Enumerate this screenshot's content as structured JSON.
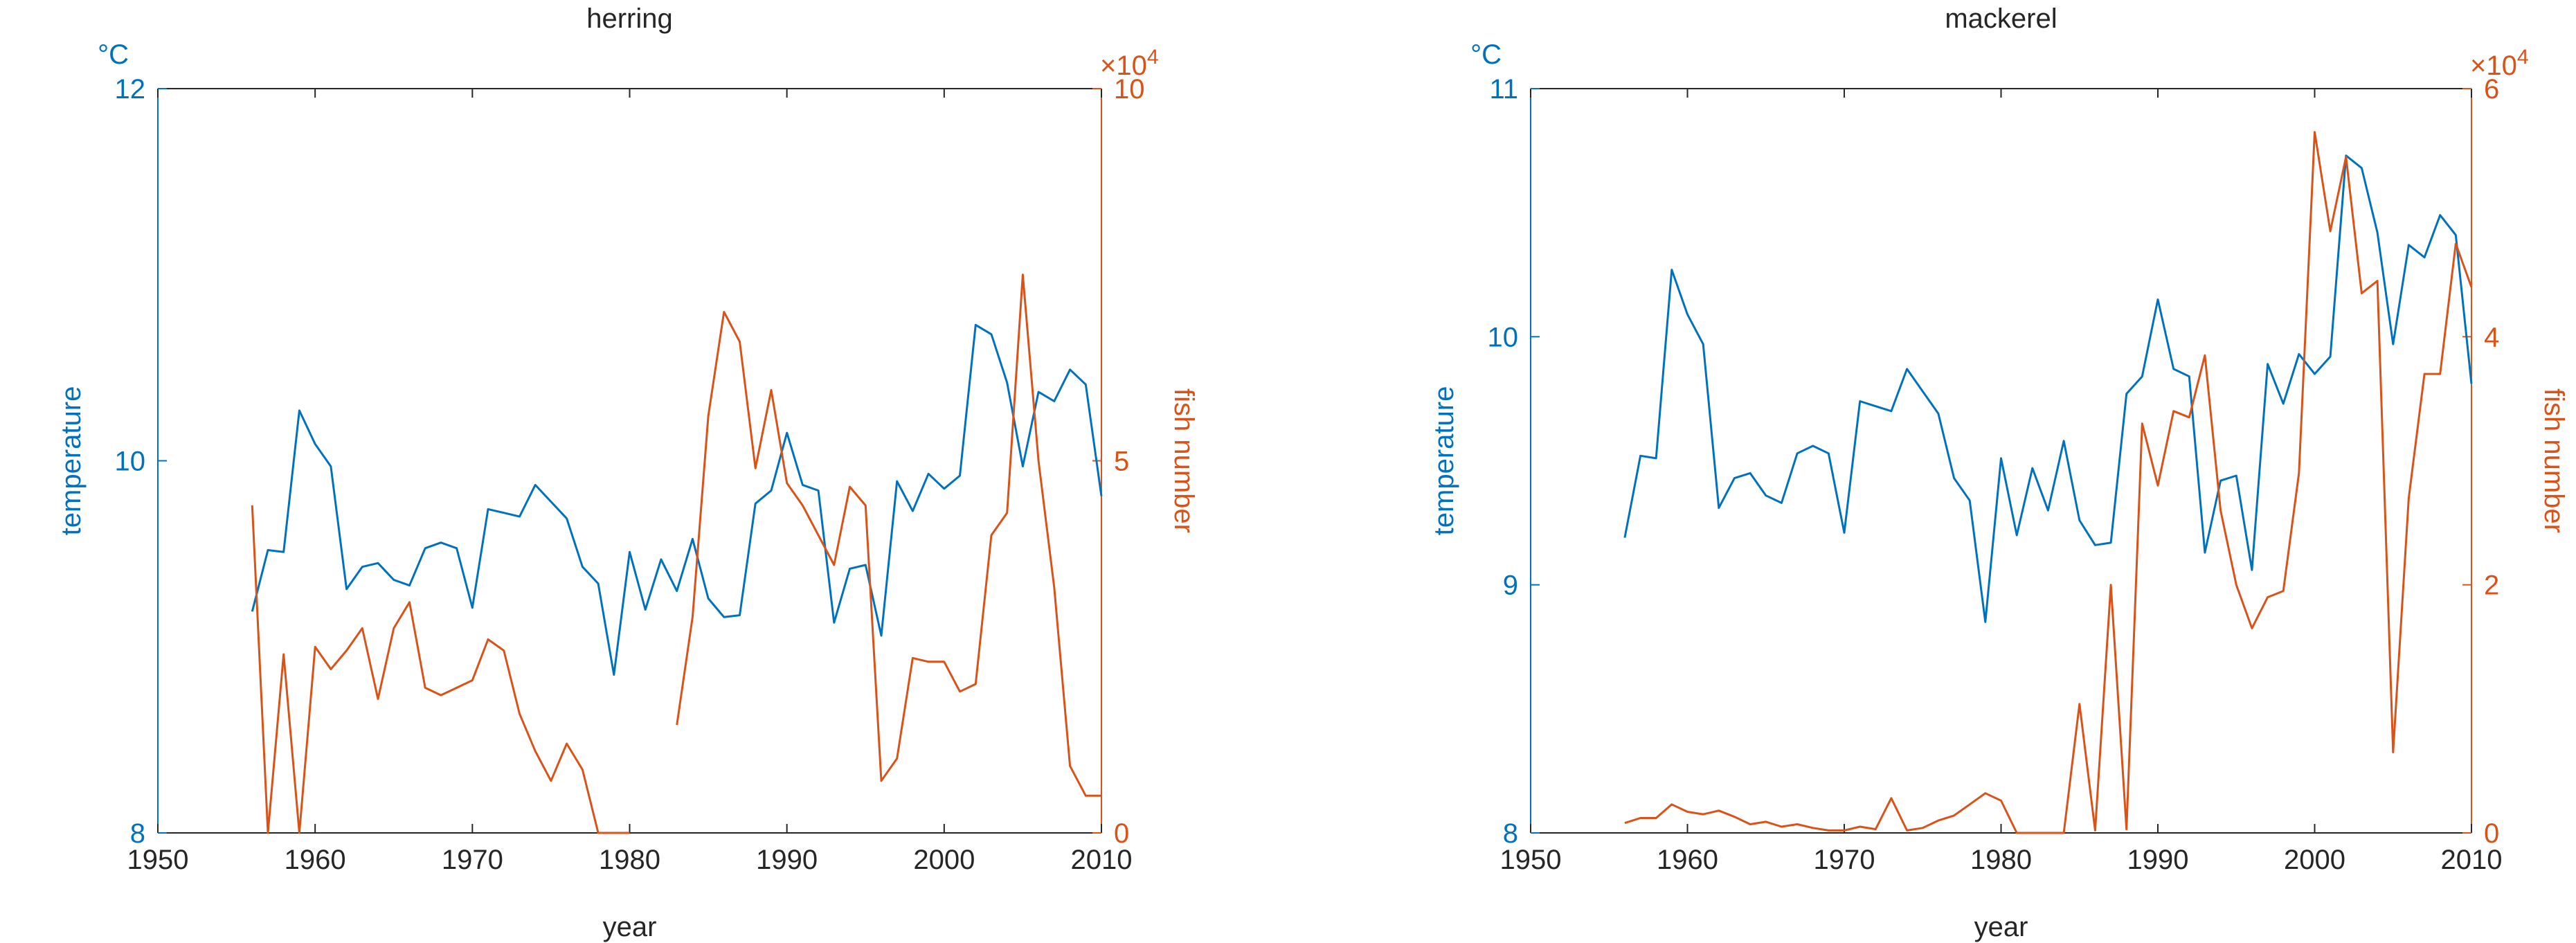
{
  "chart_data": [
    {
      "type": "line",
      "title": "herring",
      "xlabel": "year",
      "xlim": [
        1950,
        2010
      ],
      "xticks": [
        "1950",
        "1960",
        "1970",
        "1980",
        "1990",
        "2000",
        "2010"
      ],
      "left_axis": {
        "label": "temperature",
        "unit": "°C",
        "ylim": [
          8,
          12
        ],
        "ticks": [
          "8",
          "10",
          "12"
        ],
        "color": "#0072BD"
      },
      "right_axis": {
        "label": "fish number",
        "multiplier": "×10",
        "exponent": "4",
        "ylim": [
          0,
          100000
        ],
        "ticks": [
          "0",
          "5",
          "10"
        ],
        "color": "#D95319"
      },
      "series": [
        {
          "axis": "left",
          "color": "#0072BD",
          "x": [
            1956,
            1957,
            1958,
            1959,
            1960,
            1961,
            1962,
            1963,
            1964,
            1965,
            1966,
            1967,
            1968,
            1969,
            1970,
            1971,
            1972,
            1973,
            1974,
            1975,
            1976,
            1977,
            1978,
            1979,
            1980,
            1981,
            1982,
            1983,
            1984,
            1985,
            1986,
            1987,
            1988,
            1989,
            1990,
            1991,
            1992,
            1993,
            1994,
            1995,
            1996,
            1997,
            1998,
            1999,
            2000,
            2001,
            2002,
            2003,
            2004,
            2005,
            2006,
            2007,
            2008,
            2009,
            2010
          ],
          "y": [
            9.19,
            9.52,
            9.51,
            10.27,
            10.09,
            9.97,
            9.31,
            9.43,
            9.45,
            9.36,
            9.33,
            9.53,
            9.56,
            9.53,
            9.21,
            9.74,
            9.72,
            9.7,
            9.87,
            9.78,
            9.69,
            9.43,
            9.34,
            8.85,
            9.51,
            9.2,
            9.47,
            9.3,
            9.58,
            9.26,
            9.16,
            9.17,
            9.77,
            9.84,
            10.15,
            9.87,
            9.84,
            9.13,
            9.42,
            9.44,
            9.06,
            9.89,
            9.73,
            9.93,
            9.85,
            9.92,
            10.73,
            10.68,
            10.42,
            9.97,
            10.37,
            10.32,
            10.49,
            10.41,
            9.81
          ]
        },
        {
          "axis": "right",
          "color": "#D95319",
          "segments": [
            {
              "x": [
                1956,
                1957,
                1958,
                1959,
                1960,
                1961,
                1962,
                1963,
                1964,
                1965,
                1966,
                1967,
                1968,
                1969,
                1970,
                1971,
                1972,
                1973,
                1974,
                1975,
                1976,
                1977,
                1978,
                1979,
                1980
              ],
              "y": [
                44000,
                0,
                24000,
                0,
                25000,
                22000,
                24500,
                27500,
                18000,
                27500,
                31000,
                19500,
                18500,
                19500,
                20500,
                26000,
                24500,
                16000,
                11000,
                7000,
                12000,
                8500,
                0,
                0,
                0
              ]
            },
            {
              "x": [
                1983,
                1984,
                1985,
                1986,
                1987,
                1988,
                1989,
                1990,
                1991,
                1992,
                1993,
                1994,
                1995,
                1996,
                1997,
                1998,
                1999,
                2000,
                2001,
                2002,
                2003,
                2004,
                2005,
                2006,
                2007,
                2008,
                2009,
                2010
              ],
              "y": [
                14500,
                29000,
                56000,
                70000,
                66000,
                49000,
                59500,
                47000,
                44000,
                40000,
                36000,
                46500,
                44000,
                7000,
                10000,
                23500,
                23000,
                23000,
                19000,
                20000,
                40000,
                43000,
                75000,
                50000,
                33000,
                9000,
                5000,
                5000
              ]
            }
          ]
        }
      ]
    },
    {
      "type": "line",
      "title": "mackerel",
      "xlabel": "year",
      "xlim": [
        1950,
        2010
      ],
      "xticks": [
        "1950",
        "1960",
        "1970",
        "1980",
        "1990",
        "2000",
        "2010"
      ],
      "left_axis": {
        "label": "temperature",
        "unit": "°C",
        "ylim": [
          8,
          11
        ],
        "ticks": [
          "8",
          "9",
          "10",
          "11"
        ],
        "color": "#0072BD"
      },
      "right_axis": {
        "label": "fish number",
        "multiplier": "×10",
        "exponent": "4",
        "ylim": [
          0,
          60000
        ],
        "ticks": [
          "0",
          "2",
          "4",
          "6"
        ],
        "color": "#D95319"
      },
      "series": [
        {
          "axis": "left",
          "color": "#0072BD",
          "x": [
            1956,
            1957,
            1958,
            1959,
            1960,
            1961,
            1962,
            1963,
            1964,
            1965,
            1966,
            1967,
            1968,
            1969,
            1970,
            1971,
            1972,
            1973,
            1974,
            1975,
            1976,
            1977,
            1978,
            1979,
            1980,
            1981,
            1982,
            1983,
            1984,
            1985,
            1986,
            1987,
            1988,
            1989,
            1990,
            1991,
            1992,
            1993,
            1994,
            1995,
            1996,
            1997,
            1998,
            1999,
            2000,
            2001,
            2002,
            2003,
            2004,
            2005,
            2006,
            2007,
            2008,
            2009,
            2010
          ],
          "y": [
            9.19,
            9.52,
            9.51,
            10.27,
            10.09,
            9.97,
            9.31,
            9.43,
            9.45,
            9.36,
            9.33,
            9.53,
            9.56,
            9.53,
            9.21,
            9.74,
            9.72,
            9.7,
            9.87,
            9.78,
            9.69,
            9.43,
            9.34,
            8.85,
            9.51,
            9.2,
            9.47,
            9.3,
            9.58,
            9.26,
            9.16,
            9.17,
            9.77,
            9.84,
            10.15,
            9.87,
            9.84,
            9.13,
            9.42,
            9.44,
            9.06,
            9.89,
            9.73,
            9.93,
            9.85,
            9.92,
            10.73,
            10.68,
            10.42,
            9.97,
            10.37,
            10.32,
            10.49,
            10.41,
            9.81
          ]
        },
        {
          "axis": "right",
          "color": "#D95319",
          "segments": [
            {
              "x": [
                1956,
                1957,
                1958,
                1959,
                1960,
                1961,
                1962,
                1963,
                1964,
                1965,
                1966,
                1967,
                1968,
                1969,
                1970,
                1971,
                1972,
                1973,
                1974,
                1975,
                1976,
                1977,
                1978,
                1979,
                1980,
                1981,
                1982,
                1983,
                1984,
                1985,
                1986,
                1987,
                1988,
                1989,
                1990,
                1991,
                1992,
                1993,
                1994,
                1995,
                1996,
                1997,
                1998,
                1999,
                2000,
                2001,
                2002,
                2003,
                2004,
                2005,
                2006,
                2007,
                2008,
                2009,
                2010
              ],
              "y": [
                800,
                1200,
                1200,
                2300,
                1700,
                1500,
                1800,
                1300,
                700,
                900,
                500,
                700,
                400,
                200,
                200,
                500,
                300,
                2800,
                200,
                400,
                1000,
                1400,
                2300,
                3200,
                2600,
                0,
                0,
                0,
                0,
                10400,
                200,
                20000,
                300,
                33000,
                28000,
                34000,
                33500,
                38500,
                26000,
                20000,
                16500,
                19000,
                19500,
                29000,
                56500,
                48500,
                54500,
                43500,
                44500,
                6500,
                27000,
                37000,
                37000,
                47500,
                44000
              ]
            }
          ]
        }
      ]
    }
  ]
}
